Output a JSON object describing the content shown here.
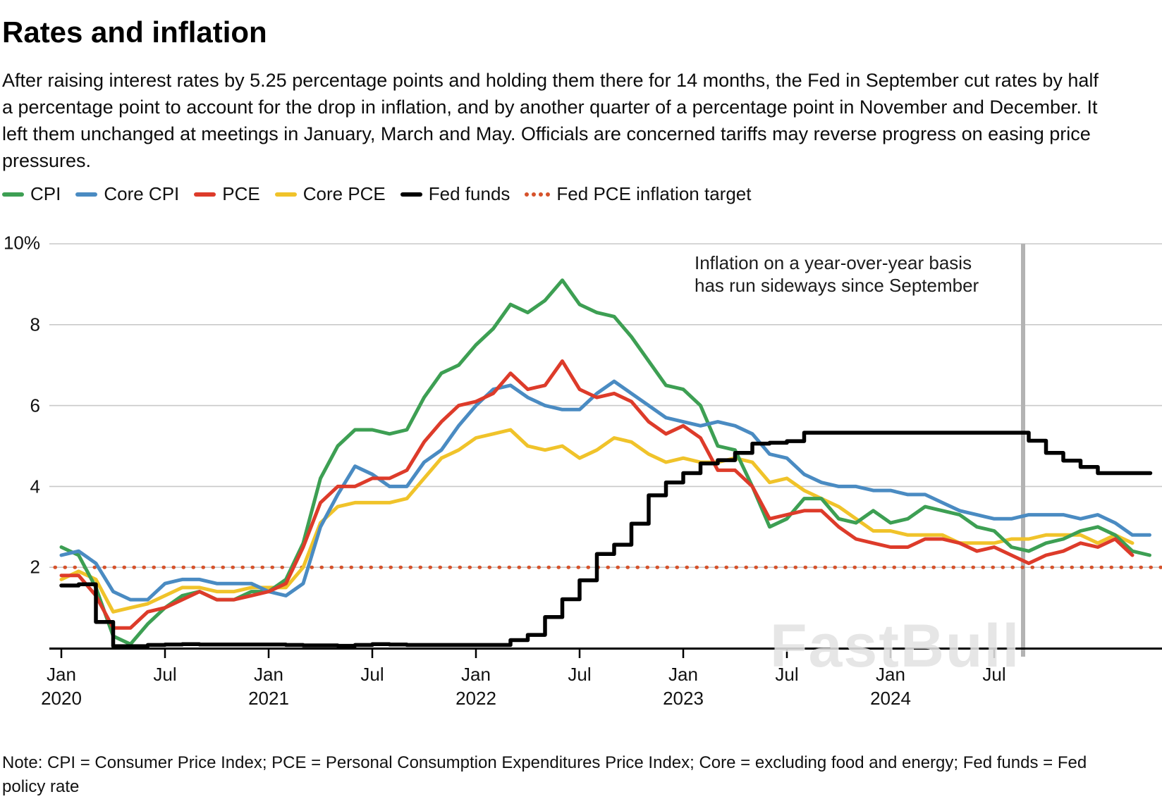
{
  "title": "Rates and inflation",
  "description": "After raising interest rates by 5.25 percentage points and holding them there for 14 months, the Fed in September cut rates by half a percentage point to account for the drop in inflation, and by another quarter of a percentage point in November and December. It left them unchanged at meetings in January, March and May. Officials are concerned tariffs may reverse progress on easing price pressures.",
  "legend": {
    "items": [
      {
        "label": "CPI",
        "color": "#3d9f53",
        "style": "line"
      },
      {
        "label": "Core CPI",
        "color": "#4a8bc2",
        "style": "line"
      },
      {
        "label": "PCE",
        "color": "#dd3b2a",
        "style": "line"
      },
      {
        "label": "Core PCE",
        "color": "#f0c32a",
        "style": "line"
      },
      {
        "label": "Fed funds",
        "color": "#000000",
        "style": "line"
      },
      {
        "label": "Fed PCE inflation target",
        "color": "#d6522b",
        "style": "dotted"
      }
    ]
  },
  "annotation": {
    "line1": "Inflation on a year-over-year basis",
    "line2": "has run sideways since September"
  },
  "watermark": "FastBull",
  "note": "Note: CPI = Consumer Price Index; PCE = Personal Consumption Expenditures Price Index; Core = excluding food and energy; Fed funds = Fed policy rate",
  "chart_data": {
    "type": "line",
    "x_unit": "month",
    "x_start_label": "Jan 2020",
    "ylabel": "percent",
    "ylim": [
      0,
      10.4
    ],
    "grid": true,
    "y_ticks": [
      "10%",
      "8",
      "6",
      "4",
      "2"
    ],
    "y_tick_values": [
      10,
      8,
      6,
      4,
      2
    ],
    "x_ticks": [
      {
        "m": 0,
        "month": "Jan",
        "year": "2020"
      },
      {
        "m": 6,
        "month": "Jul",
        "year": ""
      },
      {
        "m": 12,
        "month": "Jan",
        "year": "2021"
      },
      {
        "m": 18,
        "month": "Jul",
        "year": ""
      },
      {
        "m": 24,
        "month": "Jan",
        "year": "2022"
      },
      {
        "m": 30,
        "month": "Jul",
        "year": ""
      },
      {
        "m": 36,
        "month": "Jan",
        "year": "2023"
      },
      {
        "m": 42,
        "month": "Jul",
        "year": ""
      },
      {
        "m": 48,
        "month": "Jan",
        "year": "2024"
      },
      {
        "m": 54,
        "month": "Jul",
        "year": ""
      }
    ],
    "vline": {
      "month_index": 56,
      "label": "September 2024"
    },
    "target": {
      "name": "Fed PCE inflation target",
      "value": 2,
      "color": "#d6522b"
    },
    "series": [
      {
        "name": "CPI",
        "color": "#3d9f53",
        "step": false,
        "values": [
          2.5,
          2.3,
          1.5,
          0.3,
          0.1,
          0.6,
          1.0,
          1.3,
          1.4,
          1.2,
          1.2,
          1.4,
          1.4,
          1.7,
          2.6,
          4.2,
          5.0,
          5.4,
          5.4,
          5.3,
          5.4,
          6.2,
          6.8,
          7.0,
          7.5,
          7.9,
          8.5,
          8.3,
          8.6,
          9.1,
          8.5,
          8.3,
          8.2,
          7.7,
          7.1,
          6.5,
          6.4,
          6.0,
          5.0,
          4.9,
          4.0,
          3.0,
          3.2,
          3.7,
          3.7,
          3.2,
          3.1,
          3.4,
          3.1,
          3.2,
          3.5,
          3.4,
          3.3,
          3.0,
          2.9,
          2.5,
          2.4,
          2.6,
          2.7,
          2.9,
          3.0,
          2.8,
          2.4,
          2.3
        ]
      },
      {
        "name": "Core CPI",
        "color": "#4a8bc2",
        "step": false,
        "values": [
          2.3,
          2.4,
          2.1,
          1.4,
          1.2,
          1.2,
          1.6,
          1.7,
          1.7,
          1.6,
          1.6,
          1.6,
          1.4,
          1.3,
          1.6,
          3.0,
          3.8,
          4.5,
          4.3,
          4.0,
          4.0,
          4.6,
          4.9,
          5.5,
          6.0,
          6.4,
          6.5,
          6.2,
          6.0,
          5.9,
          5.9,
          6.3,
          6.6,
          6.3,
          6.0,
          5.7,
          5.6,
          5.5,
          5.6,
          5.5,
          5.3,
          4.8,
          4.7,
          4.3,
          4.1,
          4.0,
          4.0,
          3.9,
          3.9,
          3.8,
          3.8,
          3.6,
          3.4,
          3.3,
          3.2,
          3.2,
          3.3,
          3.3,
          3.3,
          3.2,
          3.3,
          3.1,
          2.8,
          2.8
        ]
      },
      {
        "name": "Core PCE",
        "color": "#f0c32a",
        "step": false,
        "values": [
          1.7,
          1.9,
          1.7,
          0.9,
          1.0,
          1.1,
          1.3,
          1.5,
          1.5,
          1.4,
          1.4,
          1.5,
          1.5,
          1.5,
          2.0,
          3.1,
          3.5,
          3.6,
          3.6,
          3.6,
          3.7,
          4.2,
          4.7,
          4.9,
          5.2,
          5.3,
          5.4,
          5.0,
          4.9,
          5.0,
          4.7,
          4.9,
          5.2,
          5.1,
          4.8,
          4.6,
          4.7,
          4.6,
          4.6,
          4.7,
          4.6,
          4.1,
          4.2,
          3.9,
          3.7,
          3.5,
          3.2,
          2.9,
          2.9,
          2.8,
          2.8,
          2.8,
          2.6,
          2.6,
          2.6,
          2.7,
          2.7,
          2.8,
          2.8,
          2.8,
          2.6,
          2.8,
          2.6
        ]
      },
      {
        "name": "PCE",
        "color": "#dd3b2a",
        "step": false,
        "values": [
          1.8,
          1.8,
          1.3,
          0.5,
          0.5,
          0.9,
          1.0,
          1.2,
          1.4,
          1.2,
          1.2,
          1.3,
          1.4,
          1.6,
          2.5,
          3.6,
          4.0,
          4.0,
          4.2,
          4.2,
          4.4,
          5.1,
          5.6,
          6.0,
          6.1,
          6.3,
          6.8,
          6.4,
          6.5,
          7.1,
          6.4,
          6.2,
          6.3,
          6.1,
          5.6,
          5.3,
          5.5,
          5.2,
          4.4,
          4.4,
          4.0,
          3.2,
          3.3,
          3.4,
          3.4,
          3.0,
          2.7,
          2.6,
          2.5,
          2.5,
          2.7,
          2.7,
          2.6,
          2.4,
          2.5,
          2.3,
          2.1,
          2.3,
          2.4,
          2.6,
          2.5,
          2.7,
          2.3
        ]
      },
      {
        "name": "Fed funds",
        "color": "#000000",
        "step": true,
        "values": [
          1.55,
          1.58,
          0.65,
          0.05,
          0.05,
          0.08,
          0.09,
          0.1,
          0.09,
          0.09,
          0.09,
          0.09,
          0.09,
          0.08,
          0.07,
          0.07,
          0.06,
          0.08,
          0.1,
          0.09,
          0.08,
          0.08,
          0.08,
          0.08,
          0.08,
          0.08,
          0.2,
          0.33,
          0.77,
          1.21,
          1.68,
          2.33,
          2.56,
          3.08,
          3.78,
          4.1,
          4.33,
          4.57,
          4.65,
          4.83,
          5.06,
          5.08,
          5.12,
          5.33,
          5.33,
          5.33,
          5.33,
          5.33,
          5.33,
          5.33,
          5.33,
          5.33,
          5.33,
          5.33,
          5.33,
          5.33,
          5.13,
          4.83,
          4.64,
          4.48,
          4.33,
          4.33,
          4.33,
          4.33
        ]
      }
    ]
  }
}
